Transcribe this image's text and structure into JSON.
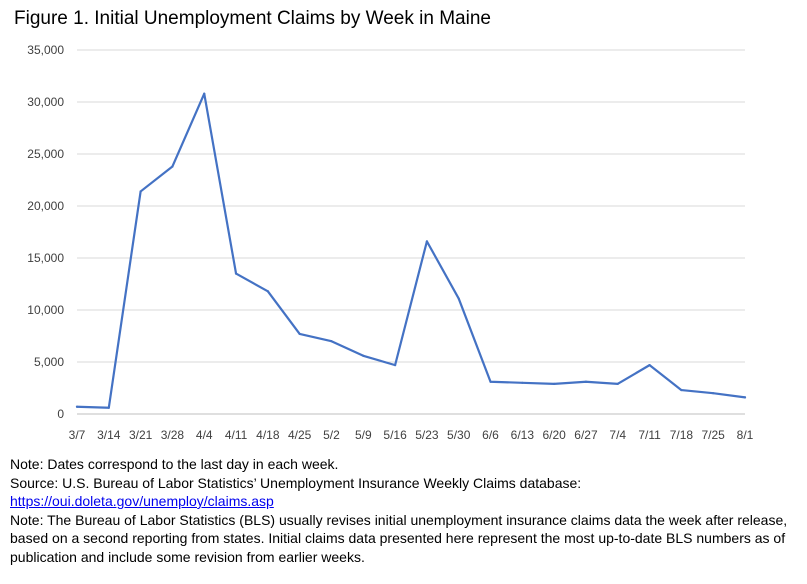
{
  "figure": {
    "title": "Figure 1. Initial Unemployment Claims by Week in Maine"
  },
  "chart_data": {
    "type": "line",
    "title": "Figure 1. Initial Unemployment Claims by Week in Maine",
    "xlabel": "",
    "ylabel": "",
    "ylim": [
      0,
      35000
    ],
    "yticks": [
      "0",
      "5,000",
      "10,000",
      "15,000",
      "20,000",
      "25,000",
      "30,000",
      "35,000"
    ],
    "ytick_values": [
      0,
      5000,
      10000,
      15000,
      20000,
      25000,
      30000,
      35000
    ],
    "grid": true,
    "legend": "none",
    "categories": [
      "3/7",
      "3/14",
      "3/21",
      "3/28",
      "4/4",
      "4/11",
      "4/18",
      "4/25",
      "5/2",
      "5/9",
      "5/16",
      "5/23",
      "5/30",
      "6/6",
      "6/13",
      "6/20",
      "6/27",
      "7/4",
      "7/11",
      "7/18",
      "7/25",
      "8/1"
    ],
    "series": [
      {
        "values": [
          700,
          600,
          21400,
          23800,
          30800,
          13500,
          11800,
          7700,
          7000,
          5600,
          4700,
          16600,
          11100,
          3100,
          3000,
          2900,
          3100,
          2900,
          4700,
          2300,
          2000,
          1600
        ],
        "color": "#4472c4"
      }
    ]
  },
  "notes": {
    "line1": "Note: Dates correspond to the last day in each week.",
    "line2": "Source: U.S. Bureau of Labor Statistics’ Unemployment Insurance Weekly Claims database:",
    "link": "https://oui.doleta.gov/unemploy/claims.asp",
    "line3": "Note: The Bureau of Labor Statistics (BLS) usually revises initial unemployment insurance claims data the week after release, based on a second reporting from states. Initial claims data presented here represent the most up-to-date BLS numbers as of publication and include some revision from earlier weeks."
  }
}
